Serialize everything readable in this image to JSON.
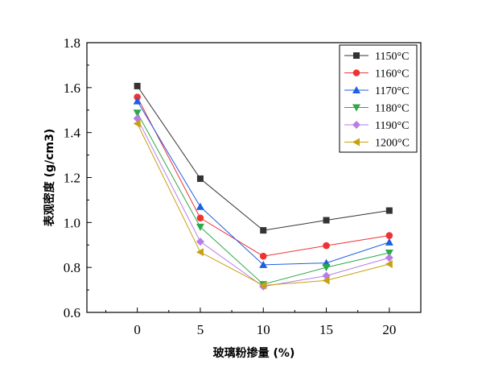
{
  "chart_data": {
    "type": "line",
    "title": "",
    "xlabel": "玻璃粉掺量 (%)",
    "ylabel": "表观密度 (g/cm3)",
    "x": [
      0,
      5,
      10,
      15,
      20
    ],
    "xlim": [
      -4,
      22.5
    ],
    "ylim": [
      0.6,
      1.8
    ],
    "x_ticks": [
      "0",
      "5",
      "10",
      "15",
      "20"
    ],
    "y_ticks": [
      "0.6",
      "0.8",
      "1.0",
      "1.2",
      "1.4",
      "1.6",
      "1.8"
    ],
    "grid": false,
    "legend_position": "top-right",
    "series": [
      {
        "name": "1150°C",
        "color": "#333333",
        "marker": "square",
        "values": [
          1.607,
          1.195,
          0.965,
          1.01,
          1.053
        ]
      },
      {
        "name": "1160°C",
        "color": "#ee3333",
        "marker": "circle",
        "values": [
          1.558,
          1.02,
          0.85,
          0.897,
          0.942
        ]
      },
      {
        "name": "1170°C",
        "color": "#1f5fe0",
        "marker": "triangle-up",
        "values": [
          1.54,
          1.07,
          0.812,
          0.82,
          0.912
        ]
      },
      {
        "name": "1180°C",
        "color": "#2ea84a",
        "marker": "triangle-down",
        "values": [
          1.488,
          0.98,
          0.725,
          0.8,
          0.865
        ]
      },
      {
        "name": "1190°C",
        "color": "#b77ee8",
        "marker": "diamond",
        "values": [
          1.463,
          0.915,
          0.715,
          0.763,
          0.843
        ]
      },
      {
        "name": "1200°C",
        "color": "#c8a010",
        "marker": "triangle-left",
        "values": [
          1.44,
          0.868,
          0.72,
          0.742,
          0.815
        ]
      }
    ]
  }
}
